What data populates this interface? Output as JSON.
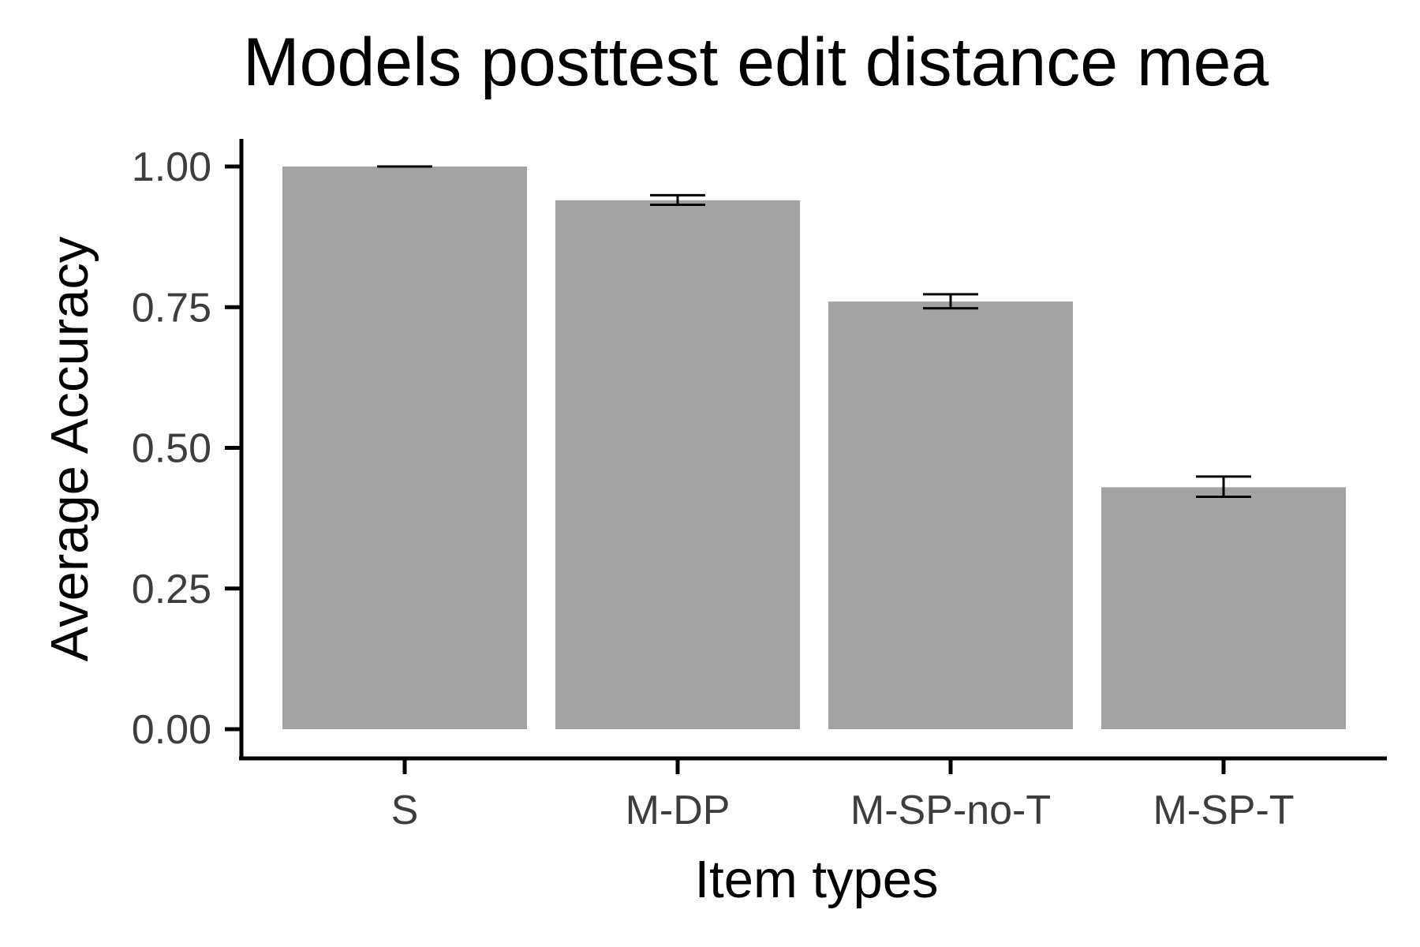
{
  "chart_data": {
    "type": "bar",
    "title": "Models posttest edit distance mea",
    "xlabel": "Item types",
    "ylabel": "Average Accuracy",
    "categories": [
      "S",
      "M-DP",
      "M-SP-no-T",
      "M-SP-T"
    ],
    "values": [
      1.0,
      0.94,
      0.76,
      0.43
    ],
    "error_low": [
      1.0,
      0.932,
      0.748,
      0.413
    ],
    "error_high": [
      1.0,
      0.949,
      0.773,
      0.449
    ],
    "yticks": [
      "0.00",
      "0.25",
      "0.50",
      "0.75",
      "1.00"
    ],
    "ylim": [
      0,
      1.0
    ],
    "grid": false,
    "legend": "none",
    "colors": {
      "bar": "#a3a3a3",
      "axis": "#000000",
      "tick_text": "#3d3d3d"
    }
  }
}
